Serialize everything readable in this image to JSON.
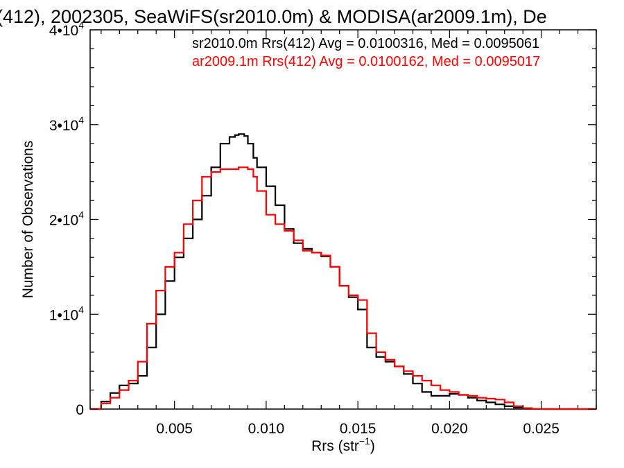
{
  "chart_data": {
    "type": "line",
    "title": "(412), 2002305, SeaWiFS(sr2010.0m) & MODISA(ar2009.1m), De",
    "xlabel": "Rrs (str",
    "xlabel_sup": "−1",
    "xlabel_suffix": ")",
    "ylabel": "Number of Observations",
    "xlim": [
      0.0004,
      0.028
    ],
    "ylim": [
      0,
      40000
    ],
    "x_ticks": [
      0.005,
      0.01,
      0.015,
      0.02,
      0.025
    ],
    "x_tick_labels": [
      "0.005",
      "0.010",
      "0.015",
      "0.020",
      "0.025"
    ],
    "y_ticks": [
      0,
      10000,
      20000,
      30000,
      40000
    ],
    "y_tick_labels": [
      {
        "base": "0",
        "exp": ""
      },
      {
        "base": "1•10",
        "exp": "4"
      },
      {
        "base": "2•10",
        "exp": "4"
      },
      {
        "base": "3•10",
        "exp": "4"
      },
      {
        "base": "4•10",
        "exp": "4"
      }
    ],
    "grid": false,
    "step": true,
    "series": [
      {
        "name": "sr2010.0m",
        "color": "#000000",
        "legend": "sr2010.0m Rrs(412) Avg = 0.0100316, Med = 0.0095061",
        "x": [
          0.0004,
          0.001,
          0.0015,
          0.002,
          0.0025,
          0.003,
          0.0035,
          0.004,
          0.0045,
          0.005,
          0.0055,
          0.006,
          0.0065,
          0.007,
          0.0075,
          0.008,
          0.0083,
          0.0085,
          0.0088,
          0.009,
          0.0093,
          0.0095,
          0.01,
          0.0105,
          0.011,
          0.0115,
          0.012,
          0.0125,
          0.013,
          0.0135,
          0.014,
          0.0145,
          0.015,
          0.0155,
          0.016,
          0.0165,
          0.017,
          0.0175,
          0.018,
          0.0185,
          0.019,
          0.0195,
          0.02,
          0.0205,
          0.021,
          0.0215,
          0.022,
          0.0225,
          0.023,
          0.0235,
          0.024,
          0.0245,
          0.025,
          0.026,
          0.028
        ],
        "y": [
          0,
          800,
          1700,
          2500,
          2700,
          3500,
          6500,
          10000,
          13500,
          16000,
          18000,
          20000,
          22500,
          25500,
          28000,
          28700,
          28900,
          29000,
          28800,
          28000,
          26500,
          25500,
          23500,
          21500,
          19000,
          17500,
          16900,
          16500,
          16100,
          15000,
          13000,
          11800,
          10500,
          6500,
          5500,
          5000,
          4500,
          3700,
          2700,
          1800,
          1400,
          1400,
          1600,
          1500,
          1200,
          900,
          700,
          500,
          300,
          150,
          50,
          20,
          0,
          0,
          0
        ]
      },
      {
        "name": "ar2009.1m",
        "color": "#ff0000",
        "legend": "ar2009.1m Rrs(412) Avg = 0.0100162, Med = 0.0095017",
        "x": [
          0.0004,
          0.001,
          0.0015,
          0.002,
          0.0025,
          0.003,
          0.0035,
          0.004,
          0.0045,
          0.005,
          0.0055,
          0.006,
          0.0065,
          0.007,
          0.0075,
          0.008,
          0.0085,
          0.009,
          0.0093,
          0.0095,
          0.01,
          0.0105,
          0.011,
          0.0115,
          0.012,
          0.0125,
          0.013,
          0.0135,
          0.014,
          0.0145,
          0.015,
          0.0155,
          0.016,
          0.0165,
          0.017,
          0.0175,
          0.018,
          0.0185,
          0.019,
          0.0195,
          0.02,
          0.0205,
          0.021,
          0.0215,
          0.022,
          0.0225,
          0.023,
          0.0235,
          0.024,
          0.0245,
          0.025,
          0.026,
          0.028
        ],
        "y": [
          0,
          600,
          1200,
          2000,
          3000,
          5000,
          9000,
          12500,
          15000,
          16500,
          19500,
          22000,
          24500,
          25000,
          25300,
          25300,
          25500,
          25300,
          24500,
          23000,
          20500,
          19500,
          18800,
          17800,
          16700,
          16500,
          16200,
          15000,
          13000,
          12000,
          11500,
          8000,
          6000,
          5200,
          4500,
          4000,
          3500,
          3000,
          2500,
          2000,
          1800,
          1500,
          1400,
          1200,
          1100,
          1000,
          700,
          300,
          100,
          30,
          0,
          0,
          0
        ]
      }
    ]
  }
}
